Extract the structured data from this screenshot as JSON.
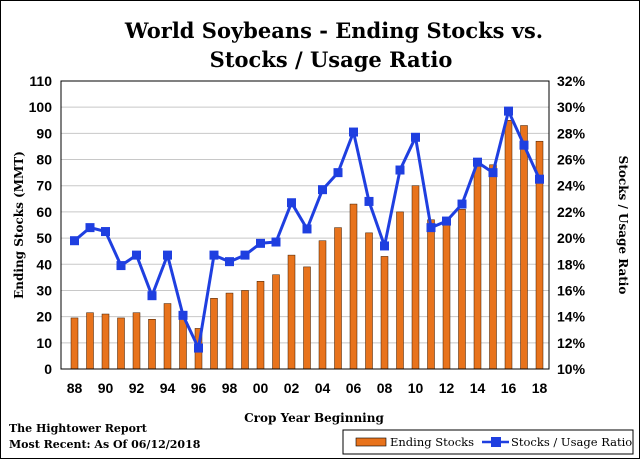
{
  "chart_data": {
    "type": "bar",
    "title_line1": "World Soybeans - Ending Stocks vs.",
    "title_line2": "Stocks / Usage Ratio",
    "xlabel": "Crop Year Beginning",
    "ylabel_left": "Ending Stocks (MMT)",
    "ylabel_right": "Stocks / Usage Ratio",
    "ylim_left": [
      0,
      110
    ],
    "yticks_left": [
      0,
      10,
      20,
      30,
      40,
      50,
      60,
      70,
      80,
      90,
      100,
      110
    ],
    "ylim_right": [
      10,
      32
    ],
    "yticks_right": [
      "10%",
      "12%",
      "14%",
      "16%",
      "18%",
      "20%",
      "22%",
      "24%",
      "26%",
      "28%",
      "30%",
      "32%"
    ],
    "x": [
      1988,
      1989,
      1990,
      1991,
      1992,
      1993,
      1994,
      1995,
      1996,
      1997,
      1998,
      1999,
      2000,
      2001,
      2002,
      2003,
      2004,
      2005,
      2006,
      2007,
      2008,
      2009,
      2010,
      2011,
      2012,
      2013,
      2014,
      2015,
      2016,
      2017,
      2018
    ],
    "xtick_labels": [
      "88",
      "90",
      "92",
      "94",
      "96",
      "98",
      "00",
      "02",
      "04",
      "06",
      "08",
      "10",
      "12",
      "14",
      "16",
      "18"
    ],
    "bar_color": "#e8731c",
    "line_color": "#1f3fe0",
    "series": [
      {
        "name": "Ending Stocks",
        "axis": "left",
        "values": [
          19.5,
          21.5,
          21,
          19.5,
          21.5,
          19,
          25,
          19.5,
          15.5,
          27,
          29,
          30,
          33.5,
          36,
          43.5,
          39,
          49,
          54,
          63,
          52,
          43,
          60,
          70,
          57,
          56,
          61,
          78,
          78,
          95,
          93,
          87
        ]
      },
      {
        "name": "Stocks / Usage Ratio",
        "axis": "right",
        "values": [
          19.8,
          20.8,
          20.5,
          17.9,
          18.7,
          15.6,
          18.7,
          14.1,
          11.6,
          18.7,
          18.2,
          18.7,
          19.6,
          19.7,
          22.7,
          20.7,
          23.7,
          25.0,
          28.1,
          22.8,
          19.4,
          25.2,
          27.7,
          20.8,
          21.3,
          22.6,
          25.8,
          25.0,
          29.7,
          27.1,
          24.5
        ]
      }
    ],
    "legend_position": "bottom-right",
    "grid": true
  },
  "footer": {
    "source": "The Hightower Report",
    "date_note": "Most Recent: As Of 06/12/2018"
  }
}
